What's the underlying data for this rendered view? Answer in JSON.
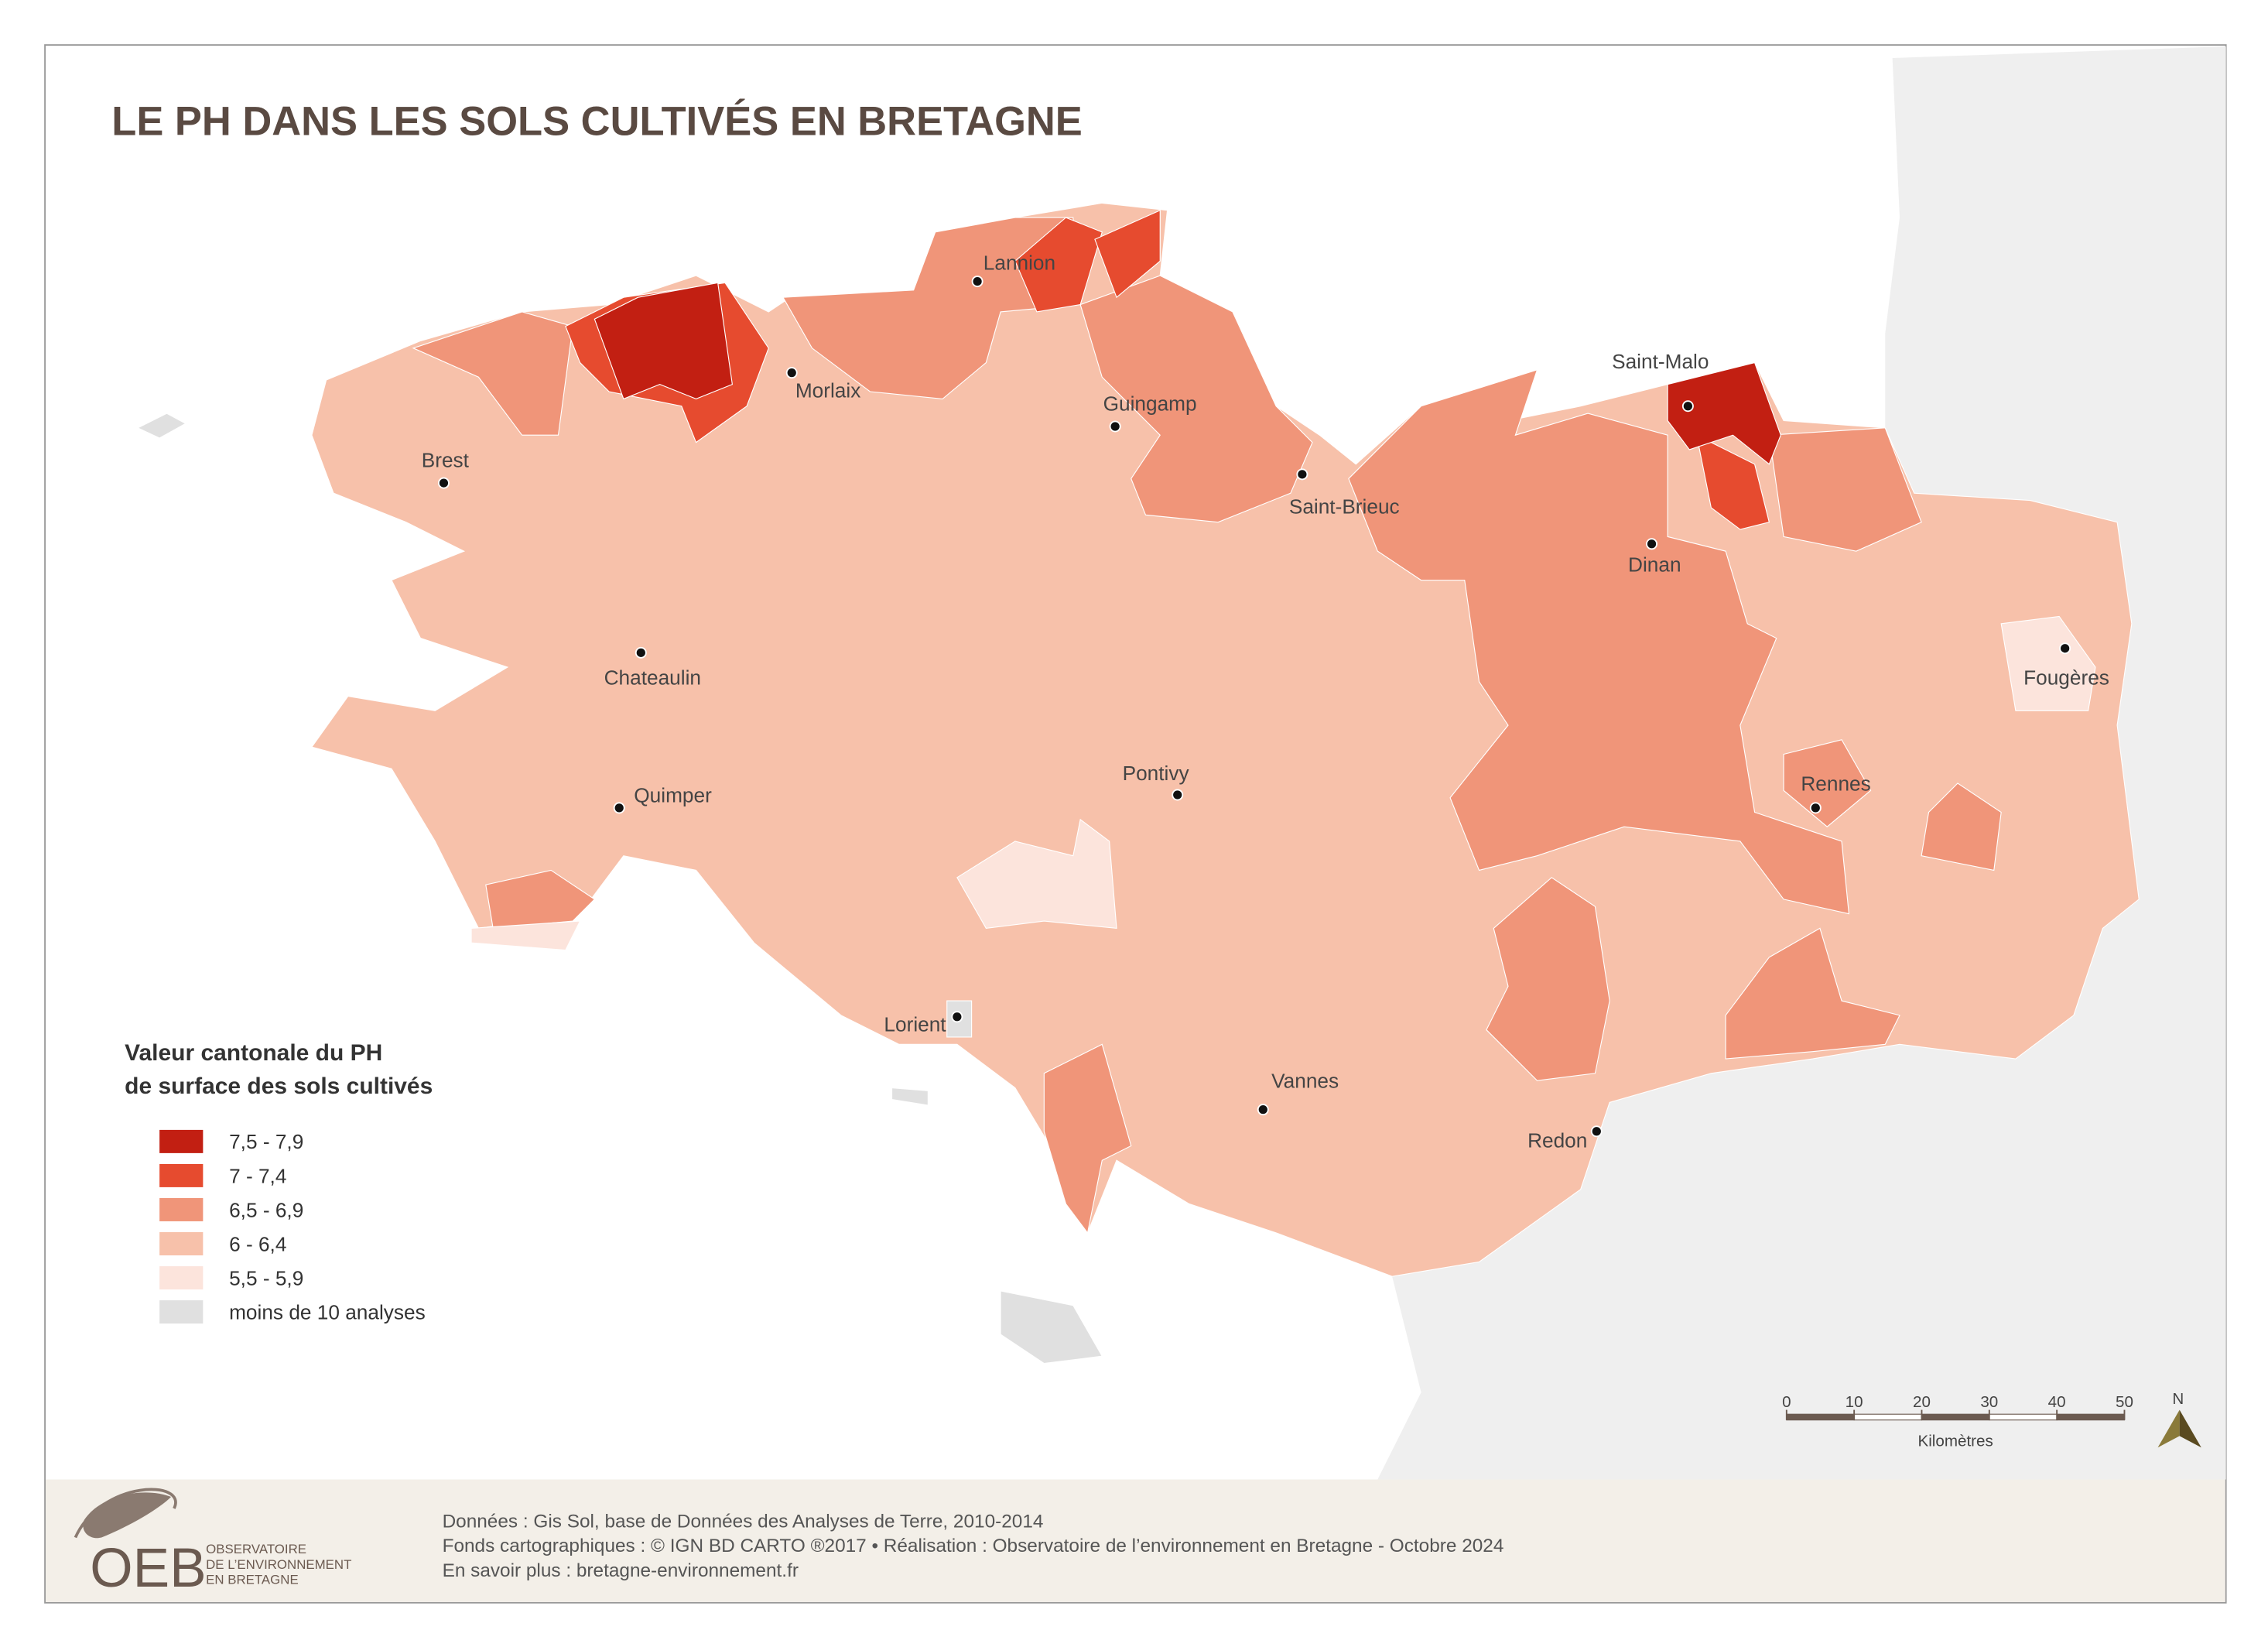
{
  "title": "LE PH DANS LES SOLS CULTIVÉS EN BRETAGNE",
  "legend": {
    "title": [
      "Valeur cantonale du PH",
      "de surface des sols cultivés"
    ],
    "items": [
      {
        "label": "7,5 - 7,9",
        "color": "#c21f12"
      },
      {
        "label": "7 - 7,4",
        "color": "#e64b2f"
      },
      {
        "label": "6,5 - 6,9",
        "color": "#f09579"
      },
      {
        "label": "6 - 6,4",
        "color": "#f7c1aa"
      },
      {
        "label": "5,5 - 5,9",
        "color": "#fce4dc"
      },
      {
        "label": "moins de 10 analyses",
        "color": "#e0e0e0"
      }
    ]
  },
  "cities": [
    "Lannion",
    "Morlaix",
    "Guingamp",
    "Brest",
    "Saint-Brieuc",
    "Saint-Malo",
    "Dinan",
    "Fougères",
    "Chateaulin",
    "Rennes",
    "Pontivy",
    "Quimper",
    "Lorient",
    "Vannes",
    "Redon"
  ],
  "scale": {
    "ticks": [
      0,
      10,
      20,
      30,
      40,
      50
    ],
    "unit": "Kilomètres",
    "north": "N"
  },
  "footer": [
    "Données : Gis Sol, base de Données des Analyses de Terre, 2010-2014",
    "Fonds cartographiques : © IGN BD CARTO ®2017 • Réalisation : Observatoire de l’environnement en Bretagne - Octobre 2024",
    "En savoir plus : bretagne-environnement.fr"
  ],
  "logo": {
    "acronym": "OEB",
    "name": [
      "OBSERVATOIRE",
      "DE L’ENVIRONNEMENT",
      "EN BRETAGNE"
    ]
  }
}
